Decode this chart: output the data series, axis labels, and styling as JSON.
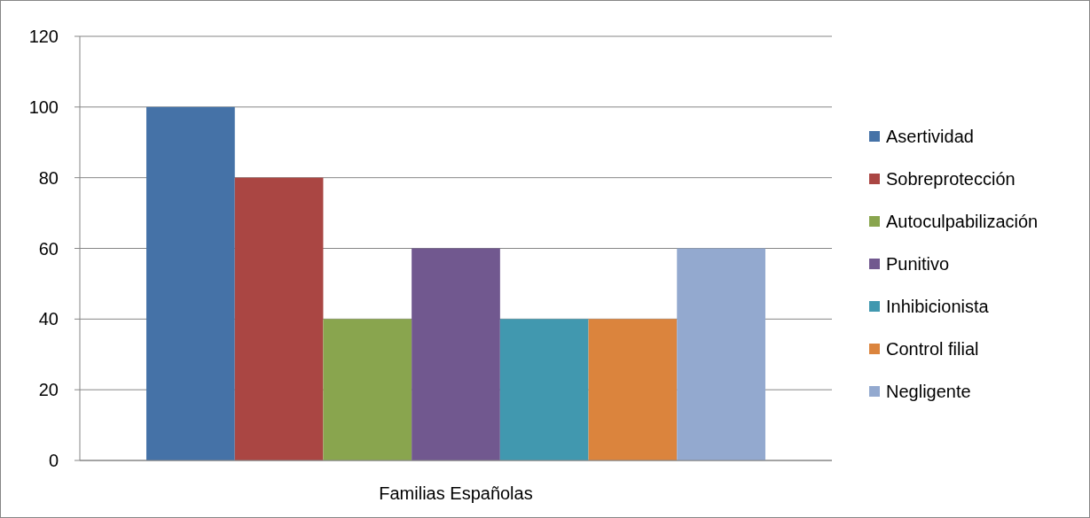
{
  "chart_data": {
    "type": "bar",
    "categories": [
      "Familias Españolas"
    ],
    "series": [
      {
        "name": "Asertividad",
        "color": "#4572a7",
        "values": [
          100
        ]
      },
      {
        "name": "Sobreprotección",
        "color": "#aa4643",
        "values": [
          80
        ]
      },
      {
        "name": "Autoculpabilización",
        "color": "#89a54e",
        "values": [
          40
        ]
      },
      {
        "name": "Punitivo",
        "color": "#71588f",
        "values": [
          60
        ]
      },
      {
        "name": "Inhibicionista",
        "color": "#4198af",
        "values": [
          40
        ]
      },
      {
        "name": "Control filial",
        "color": "#db843d",
        "values": [
          40
        ]
      },
      {
        "name": "Negligente",
        "color": "#93a9cf",
        "values": [
          60
        ]
      }
    ],
    "ylim": [
      0,
      120
    ],
    "yticks": [
      0,
      20,
      40,
      60,
      80,
      100,
      120
    ],
    "grid": "y",
    "legend": "right"
  }
}
